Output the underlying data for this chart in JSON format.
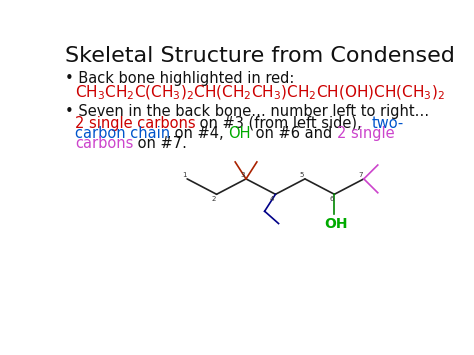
{
  "title": "Skeletal Structure from Condensed",
  "title_fontsize": 16,
  "background_color": "#ffffff",
  "bullet1_text": "Back bone highlighted in red:",
  "bullet2_line1": "Seven in the back bone… number left to right…",
  "formula": "CH$_3$CH$_2$C(CH$_3$)$_2$CH(CH$_2$CH$_3$)CH$_2$CH(OH)CH(CH$_3$)$_2$",
  "red": "#cc0000",
  "blue": "#0055cc",
  "green": "#00aa00",
  "pink": "#cc44cc",
  "black": "#111111",
  "darkred": "#990000",
  "darkblue": "#000077",
  "formula_fontsize": 11,
  "body_fontsize": 10.5
}
